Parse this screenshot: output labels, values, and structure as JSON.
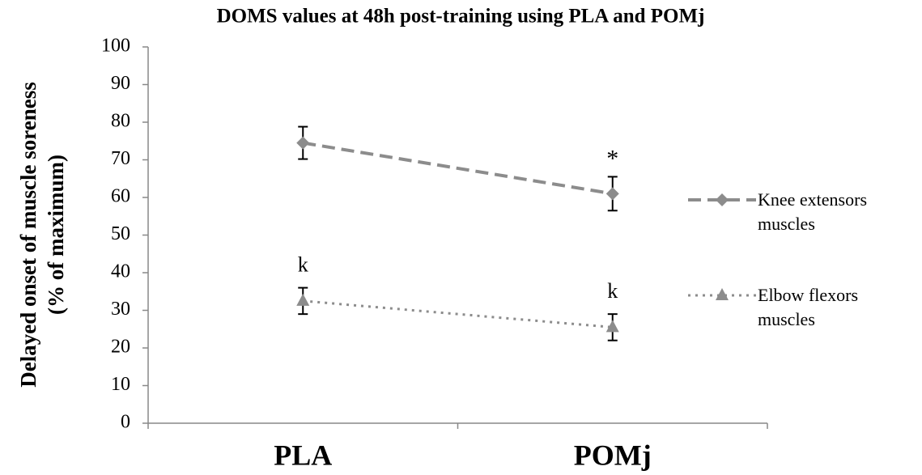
{
  "chart_data": {
    "type": "line",
    "title": "DOMS values at 48h post-training using PLA and POMj",
    "ylabel": [
      "Delayed onset of muscle soreness",
      "(% of maximum)"
    ],
    "categories": [
      "PLA",
      "POMj"
    ],
    "series": [
      {
        "name": "Knee extensors muscles",
        "color": "#8c8c8c",
        "line_style": "dashed",
        "marker": "diamond",
        "values": [
          74.5,
          61
        ],
        "errors": [
          4.3,
          4.5
        ],
        "point_labels": [
          null,
          "*"
        ]
      },
      {
        "name": "Elbow flexors muscles",
        "color": "#8c8c8c",
        "line_style": "dotted",
        "marker": "triangle",
        "values": [
          32.5,
          25.5
        ],
        "errors": [
          3.5,
          3.5
        ],
        "point_labels": [
          "k",
          "k"
        ]
      }
    ],
    "ylim": [
      0,
      100
    ],
    "yticks": [
      0,
      10,
      20,
      30,
      40,
      50,
      60,
      70,
      80,
      90,
      100
    ],
    "grid": false,
    "legend": "right"
  }
}
